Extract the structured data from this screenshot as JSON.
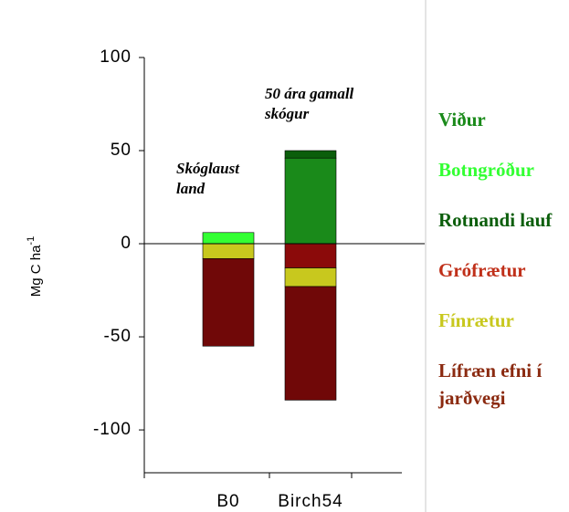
{
  "chart_data": {
    "type": "stacked-bar",
    "ylabel": "Mg C ha",
    "ylabel_sup": "-1",
    "categories": [
      "B0",
      "Birch54"
    ],
    "series": [
      {
        "name": "Viður",
        "color": "#1a8a1a",
        "values": [
          0,
          46
        ],
        "stack": "up"
      },
      {
        "name": "Botngróður",
        "color": "#33ff33",
        "values": [
          6,
          0
        ],
        "stack": "up"
      },
      {
        "name": "Rotnandi lauf",
        "color": "#0b5e0b",
        "values": [
          0,
          4
        ],
        "stack": "up"
      },
      {
        "name": "Grófrætur",
        "color": "#8b0a0a",
        "values": [
          0,
          -13
        ],
        "stack": "down",
        "legend_color": "#c0301a"
      },
      {
        "name": "Fínrætur",
        "color": "#c8c81e",
        "values": [
          -8,
          -10
        ],
        "stack": "down"
      },
      {
        "name": "Lífræn efni í jarðvegi",
        "color": "#700808",
        "values": [
          -47,
          -61
        ],
        "stack": "down",
        "legend_color": "#8b2a10"
      }
    ],
    "annotations": [
      [
        "50 ára gamall",
        "skógur"
      ],
      [
        "Skóglaust",
        "land"
      ]
    ],
    "ylim": [
      -123,
      100
    ],
    "yticks": [
      -100,
      -50,
      0,
      50,
      100
    ]
  }
}
